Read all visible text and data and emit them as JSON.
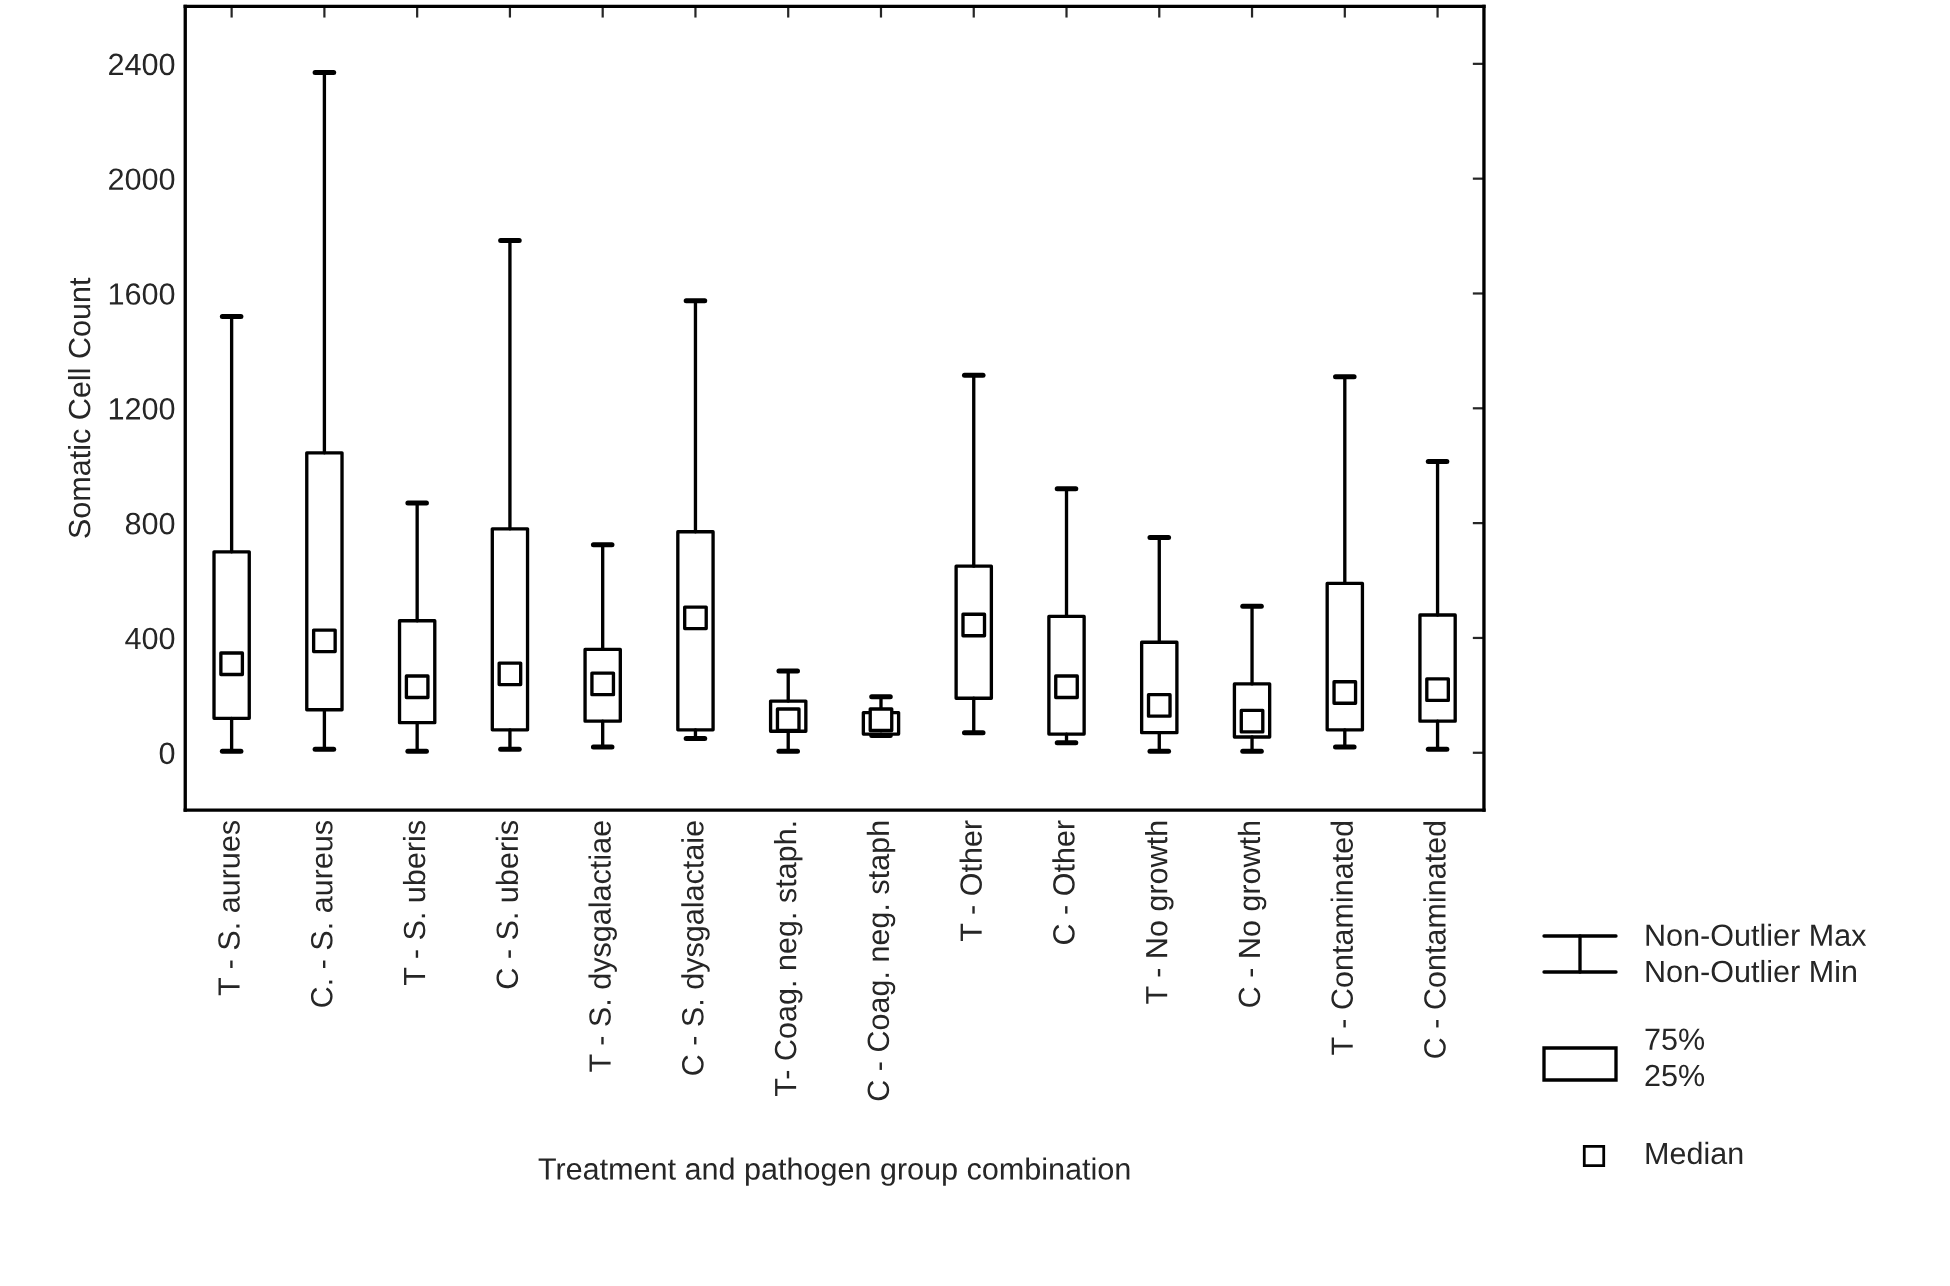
{
  "chart_data": {
    "type": "box",
    "xlabel": "Treatment and pathogen group combination",
    "ylabel": "Somatic Cell Count",
    "categories": [
      "T - S. aurues",
      "C. - S. aureus",
      "T - S. uberis",
      "C - S. uberis",
      "T - S. dysgalactiae",
      "C - S. dysgalactaie",
      "T- Coag. neg. staph.",
      "C - Coag. neg. staph",
      "T - Other",
      "C - Other",
      "T - No growth",
      "C - No growth",
      "T - Contaminated",
      "C - Contaminated"
    ],
    "boxes": [
      {
        "low": 5,
        "q1": 120,
        "median": 310,
        "q3": 700,
        "high": 1520
      },
      {
        "low": 12,
        "q1": 150,
        "median": 390,
        "q3": 1045,
        "high": 2370
      },
      {
        "low": 5,
        "q1": 105,
        "median": 230,
        "q3": 460,
        "high": 870
      },
      {
        "low": 12,
        "q1": 80,
        "median": 275,
        "q3": 780,
        "high": 1785
      },
      {
        "low": 20,
        "q1": 110,
        "median": 240,
        "q3": 360,
        "high": 725
      },
      {
        "low": 50,
        "q1": 80,
        "median": 470,
        "q3": 770,
        "high": 1575
      },
      {
        "low": 5,
        "q1": 75,
        "median": 115,
        "q3": 180,
        "high": 285
      },
      {
        "low": 60,
        "q1": 65,
        "median": 115,
        "q3": 140,
        "high": 195
      },
      {
        "low": 70,
        "q1": 190,
        "median": 445,
        "q3": 650,
        "high": 1315
      },
      {
        "low": 35,
        "q1": 65,
        "median": 230,
        "q3": 475,
        "high": 920
      },
      {
        "low": 5,
        "q1": 70,
        "median": 165,
        "q3": 385,
        "high": 750
      },
      {
        "low": 5,
        "q1": 55,
        "median": 110,
        "q3": 240,
        "high": 510
      },
      {
        "low": 20,
        "q1": 80,
        "median": 210,
        "q3": 590,
        "high": 1310
      },
      {
        "low": 12,
        "q1": 110,
        "median": 220,
        "q3": 480,
        "high": 1015
      }
    ],
    "ylim": [
      -200,
      2600
    ],
    "yticks": [
      0,
      400,
      800,
      1200,
      1600,
      2000,
      2400
    ],
    "grid": false,
    "marker": "square",
    "annotations": [
      "Non-Outlier Max\nNon-Outlier Min",
      "75%\n25%",
      "Median"
    ]
  }
}
